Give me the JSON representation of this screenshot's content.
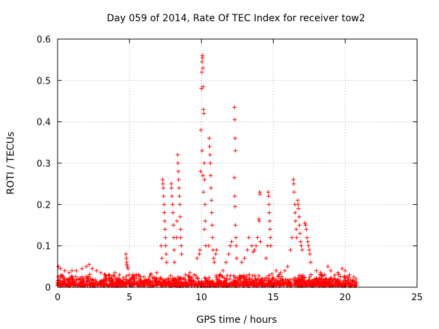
{
  "chart_data": {
    "type": "scatter",
    "title": "Day 059 of 2014, Rate Of TEC Index for receiver tow2",
    "xlabel": "GPS time / hours",
    "ylabel": "ROTI / TECUs",
    "xlim": [
      0,
      25
    ],
    "ylim": [
      0,
      0.6
    ],
    "xticks": [
      0,
      5,
      10,
      15,
      20,
      25
    ],
    "yticks": [
      0,
      0.1,
      0.2,
      0.3,
      0.4,
      0.5,
      0.6
    ],
    "grid": true,
    "marker": "+",
    "color": "#ff0000",
    "series": [
      {
        "points": [
          [
            0.05,
            0.05
          ],
          [
            0.2,
            0.045
          ],
          [
            0.5,
            0.04
          ],
          [
            0.8,
            0.035
          ],
          [
            1.0,
            0.04
          ],
          [
            1.3,
            0.04
          ],
          [
            1.7,
            0.045
          ],
          [
            2.0,
            0.05
          ],
          [
            2.2,
            0.055
          ],
          [
            2.4,
            0.045
          ],
          [
            2.7,
            0.04
          ],
          [
            3.0,
            0.035
          ],
          [
            3.3,
            0.03
          ],
          [
            3.6,
            0.03
          ],
          [
            4.0,
            0.035
          ],
          [
            4.3,
            0.03
          ],
          [
            4.75,
            0.08
          ],
          [
            4.78,
            0.07
          ],
          [
            4.8,
            0.06
          ],
          [
            4.82,
            0.055
          ],
          [
            4.85,
            0.05
          ],
          [
            4.9,
            0.045
          ],
          [
            5.2,
            0.03
          ],
          [
            5.5,
            0.03
          ],
          [
            6.0,
            0.025
          ],
          [
            6.5,
            0.03
          ],
          [
            6.9,
            0.035
          ],
          [
            7.3,
            0.26
          ],
          [
            7.32,
            0.25
          ],
          [
            7.35,
            0.24
          ],
          [
            7.37,
            0.22
          ],
          [
            7.4,
            0.2
          ],
          [
            7.42,
            0.18
          ],
          [
            7.45,
            0.16
          ],
          [
            7.47,
            0.14
          ],
          [
            7.5,
            0.12
          ],
          [
            7.52,
            0.1
          ],
          [
            7.55,
            0.08
          ],
          [
            7.57,
            0.06
          ],
          [
            7.2,
            0.1
          ],
          [
            7.25,
            0.07
          ],
          [
            7.9,
            0.25
          ],
          [
            7.92,
            0.24
          ],
          [
            7.95,
            0.22
          ],
          [
            8.0,
            0.2
          ],
          [
            8.02,
            0.18
          ],
          [
            8.05,
            0.15
          ],
          [
            8.08,
            0.12
          ],
          [
            8.1,
            0.09
          ],
          [
            8.12,
            0.06
          ],
          [
            8.35,
            0.32
          ],
          [
            8.37,
            0.3
          ],
          [
            8.4,
            0.28
          ],
          [
            8.42,
            0.26
          ],
          [
            8.45,
            0.24
          ],
          [
            8.47,
            0.22
          ],
          [
            8.5,
            0.2
          ],
          [
            8.52,
            0.17
          ],
          [
            8.55,
            0.14
          ],
          [
            8.57,
            0.12
          ],
          [
            8.6,
            0.1
          ],
          [
            8.62,
            0.08
          ],
          [
            8.3,
            0.16
          ],
          [
            8.28,
            0.12
          ],
          [
            8.9,
            0.03
          ],
          [
            9.2,
            0.035
          ],
          [
            9.5,
            0.03
          ],
          [
            9.7,
            0.07
          ],
          [
            9.85,
            0.08
          ],
          [
            9.9,
            0.09
          ],
          [
            9.95,
            0.28
          ],
          [
            9.97,
            0.38
          ],
          [
            10.0,
            0.48
          ],
          [
            10.02,
            0.52
          ],
          [
            10.05,
            0.545
          ],
          [
            10.07,
            0.56
          ],
          [
            10.08,
            0.555
          ],
          [
            10.1,
            0.53
          ],
          [
            10.12,
            0.485
          ],
          [
            10.15,
            0.43
          ],
          [
            10.17,
            0.42
          ],
          [
            10.2,
            0.3
          ],
          [
            10.22,
            0.26
          ],
          [
            10.25,
            0.2
          ],
          [
            10.27,
            0.16
          ],
          [
            10.3,
            0.1
          ],
          [
            10.05,
            0.33
          ],
          [
            10.1,
            0.27
          ],
          [
            10.15,
            0.23
          ],
          [
            10.2,
            0.14
          ],
          [
            10.5,
            0.1
          ],
          [
            10.55,
            0.36
          ],
          [
            10.57,
            0.34
          ],
          [
            10.6,
            0.32
          ],
          [
            10.62,
            0.3
          ],
          [
            10.65,
            0.27
          ],
          [
            10.67,
            0.24
          ],
          [
            10.7,
            0.21
          ],
          [
            10.72,
            0.18
          ],
          [
            10.75,
            0.15
          ],
          [
            10.77,
            0.12
          ],
          [
            10.8,
            0.09
          ],
          [
            10.85,
            0.07
          ],
          [
            10.9,
            0.06
          ],
          [
            11.0,
            0.08
          ],
          [
            11.05,
            0.09
          ],
          [
            11.5,
            0.04
          ],
          [
            11.7,
            0.06
          ],
          [
            11.9,
            0.08
          ],
          [
            12.0,
            0.1
          ],
          [
            12.1,
            0.11
          ],
          [
            12.3,
            0.435
          ],
          [
            12.32,
            0.405
          ],
          [
            12.35,
            0.36
          ],
          [
            12.37,
            0.33
          ],
          [
            12.3,
            0.265
          ],
          [
            12.32,
            0.22
          ],
          [
            12.35,
            0.195
          ],
          [
            12.37,
            0.15
          ],
          [
            12.4,
            0.12
          ],
          [
            12.42,
            0.1
          ],
          [
            12.45,
            0.07
          ],
          [
            12.8,
            0.06
          ],
          [
            13.0,
            0.07
          ],
          [
            13.2,
            0.09
          ],
          [
            13.3,
            0.12
          ],
          [
            13.5,
            0.1
          ],
          [
            13.6,
            0.085
          ],
          [
            13.7,
            0.09
          ],
          [
            13.8,
            0.1
          ],
          [
            13.9,
            0.12
          ],
          [
            14.0,
            0.165
          ],
          [
            14.02,
            0.16
          ],
          [
            14.05,
            0.23
          ],
          [
            14.07,
            0.225
          ],
          [
            14.1,
            0.11
          ],
          [
            14.5,
            0.07
          ],
          [
            14.6,
            0.1
          ],
          [
            14.65,
            0.23
          ],
          [
            14.67,
            0.22
          ],
          [
            14.7,
            0.2
          ],
          [
            14.72,
            0.18
          ],
          [
            14.75,
            0.16
          ],
          [
            14.77,
            0.14
          ],
          [
            14.8,
            0.12
          ],
          [
            14.82,
            0.1
          ],
          [
            15.2,
            0.04
          ],
          [
            15.5,
            0.035
          ],
          [
            15.8,
            0.04
          ],
          [
            16.0,
            0.05
          ],
          [
            16.2,
            0.09
          ],
          [
            16.3,
            0.12
          ],
          [
            16.4,
            0.26
          ],
          [
            16.42,
            0.25
          ],
          [
            16.45,
            0.23
          ],
          [
            16.5,
            0.2
          ],
          [
            16.52,
            0.18
          ],
          [
            16.55,
            0.16
          ],
          [
            16.6,
            0.14
          ],
          [
            16.62,
            0.12
          ],
          [
            16.7,
            0.21
          ],
          [
            16.72,
            0.2
          ],
          [
            16.75,
            0.19
          ],
          [
            16.8,
            0.17
          ],
          [
            16.82,
            0.15
          ],
          [
            16.85,
            0.13
          ],
          [
            16.9,
            0.11
          ],
          [
            16.95,
            0.1
          ],
          [
            17.0,
            0.09
          ],
          [
            17.2,
            0.155
          ],
          [
            17.25,
            0.15
          ],
          [
            17.3,
            0.14
          ],
          [
            17.35,
            0.12
          ],
          [
            17.4,
            0.11
          ],
          [
            17.45,
            0.1
          ],
          [
            17.5,
            0.09
          ],
          [
            17.55,
            0.08
          ],
          [
            17.6,
            0.06
          ],
          [
            18.0,
            0.04
          ],
          [
            18.3,
            0.035
          ],
          [
            18.8,
            0.05
          ],
          [
            19.0,
            0.04
          ],
          [
            19.5,
            0.035
          ],
          [
            19.8,
            0.045
          ],
          [
            20.0,
            0.04
          ],
          [
            20.3,
            0.03
          ],
          [
            20.6,
            0.025
          ],
          [
            20.75,
            0.02
          ]
        ]
      }
    ]
  }
}
